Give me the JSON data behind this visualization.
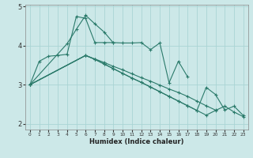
{
  "title": "",
  "xlabel": "Humidex (Indice chaleur)",
  "bg_color": "#cce8e8",
  "line_color": "#2a7a6a",
  "grid_color": "#b0d8d8",
  "ylim": [
    1.85,
    5.1
  ],
  "xlim": [
    -0.5,
    23.5
  ],
  "yticks": [
    2,
    3,
    4
  ],
  "ytick_labels": [
    "2",
    "3",
    "4"
  ],
  "xticks": [
    0,
    1,
    2,
    3,
    4,
    5,
    6,
    7,
    8,
    9,
    10,
    11,
    12,
    13,
    14,
    15,
    16,
    17,
    18,
    19,
    20,
    21,
    22,
    23
  ],
  "line1_x": [
    0,
    1,
    2,
    3,
    4,
    5,
    6,
    7,
    8,
    9,
    10,
    11,
    12,
    13,
    14,
    15,
    16,
    17
  ],
  "line1_y": [
    3.0,
    3.6,
    3.73,
    3.75,
    3.78,
    4.75,
    4.7,
    4.08,
    4.08,
    4.08,
    4.07,
    4.07,
    4.08,
    3.9,
    4.07,
    3.05,
    3.6,
    3.2
  ],
  "line2_x": [
    0,
    4,
    5,
    6,
    7,
    8,
    9
  ],
  "line2_y": [
    3.0,
    4.05,
    4.42,
    4.78,
    4.56,
    4.35,
    4.07
  ],
  "line3_x": [
    0,
    6,
    7,
    8,
    9,
    10,
    11,
    12,
    13,
    14,
    15,
    16,
    17,
    18,
    19,
    20
  ],
  "line3_y": [
    3.0,
    3.75,
    3.66,
    3.57,
    3.47,
    3.38,
    3.28,
    3.18,
    3.09,
    2.99,
    2.89,
    2.8,
    2.7,
    2.58,
    2.46,
    2.35
  ],
  "line4_x": [
    0,
    6,
    7,
    8,
    9,
    10,
    11,
    12,
    13,
    14,
    15,
    16,
    17,
    18,
    19,
    20,
    21,
    22,
    23
  ],
  "line4_y": [
    3.0,
    3.75,
    3.65,
    3.53,
    3.41,
    3.29,
    3.17,
    3.06,
    2.94,
    2.82,
    2.7,
    2.58,
    2.46,
    2.34,
    2.22,
    2.34,
    2.45,
    2.3,
    2.18
  ],
  "line5_x": [
    0,
    6,
    7,
    8,
    9,
    10,
    11,
    12,
    13,
    14,
    15,
    16,
    17,
    18,
    19,
    20,
    21,
    22,
    23
  ],
  "line5_y": [
    3.0,
    3.75,
    3.65,
    3.53,
    3.41,
    3.29,
    3.17,
    3.06,
    2.94,
    2.82,
    2.7,
    2.58,
    2.46,
    2.34,
    2.93,
    2.75,
    2.35,
    2.45,
    2.21
  ]
}
